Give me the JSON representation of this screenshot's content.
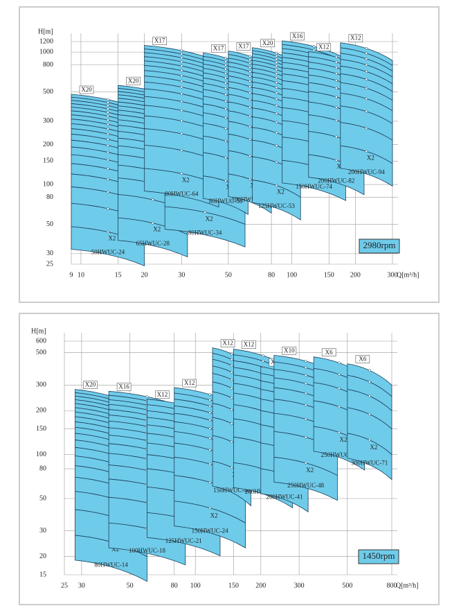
{
  "chart_data": [
    {
      "type": "pump-chart",
      "speed": "2980rpm",
      "ylabel": "H[m]",
      "xlabel": "Q[m³/h]",
      "xlog": true,
      "ylog": true,
      "grid": true,
      "xlim": [
        9,
        300
      ],
      "ylim": [
        25,
        1200
      ],
      "xticks": [
        9,
        10,
        15,
        20,
        30,
        50,
        80,
        100,
        150,
        200,
        300
      ],
      "yticks": [
        25,
        30,
        50,
        80,
        100,
        150,
        200,
        300,
        500,
        800,
        1000,
        1200
      ],
      "pumps": [
        {
          "name": "50HWUC-24",
          "q": [
            9,
            20
          ],
          "h": [
            24,
            18
          ],
          "stages": [
            2,
            20
          ],
          "stage_labels": [
            "X2",
            "X20"
          ]
        },
        {
          "name": "65HWUC-28",
          "q": [
            15,
            32
          ],
          "h": [
            28,
            21
          ],
          "stages": [
            2,
            20
          ],
          "stage_labels": [
            "X2",
            "X20"
          ]
        },
        {
          "name": "80HWUC-34",
          "q": [
            25,
            60
          ],
          "h": [
            34,
            25
          ],
          "stages": [
            2,
            20
          ],
          "stage_labels": [
            "X2",
            "X20"
          ]
        },
        {
          "name": "80HWUC-64",
          "q": [
            20,
            45
          ],
          "h": [
            66,
            50
          ],
          "stages": [
            2,
            17
          ],
          "stage_labels": [
            "X2",
            "X17"
          ]
        },
        {
          "name": "80HWUC-56",
          "q": [
            38,
            62
          ],
          "h": [
            58,
            44
          ],
          "stages": [
            2,
            17
          ],
          "stage_labels": [
            "X2",
            "X17"
          ]
        },
        {
          "name": "100HWUC-59",
          "q": [
            50,
            80
          ],
          "h": [
            60,
            45
          ],
          "stages": [
            2,
            17
          ],
          "stage_labels": [
            "X2",
            "X17"
          ]
        },
        {
          "name": "125HWUC-53",
          "q": [
            65,
            110
          ],
          "h": [
            54,
            40
          ],
          "stages": [
            2,
            20
          ],
          "stage_labels": [
            "X2",
            "X20"
          ]
        },
        {
          "name": "150HWUC-74",
          "q": [
            90,
            180
          ],
          "h": [
            76,
            56
          ],
          "stages": [
            2,
            16
          ],
          "stage_labels": [
            "X2",
            "X16"
          ]
        },
        {
          "name": "200HWUC-82",
          "q": [
            120,
            220
          ],
          "h": [
            84,
            62
          ],
          "stages": [
            2,
            12
          ],
          "stage_labels": [
            "X2",
            "X12"
          ]
        },
        {
          "name": "200HWUC-94",
          "q": [
            170,
            300
          ],
          "h": [
            98,
            72
          ],
          "stages": [
            2,
            12
          ],
          "stage_labels": [
            "X2",
            "X12"
          ]
        }
      ]
    },
    {
      "type": "pump-chart",
      "speed": "1450rpm",
      "ylabel": "H[m]",
      "xlabel": "Q[m³/h]",
      "xlog": true,
      "ylog": true,
      "grid": true,
      "xlim": [
        25,
        800
      ],
      "ylim": [
        15,
        600
      ],
      "xticks": [
        25,
        30,
        50,
        80,
        100,
        150,
        200,
        300,
        500,
        800
      ],
      "yticks": [
        15,
        20,
        30,
        50,
        80,
        100,
        150,
        200,
        300,
        500,
        600
      ],
      "pumps": [
        {
          "name": "80HWUC-14",
          "q": [
            28,
            60
          ],
          "h": [
            14,
            10
          ],
          "stages": [
            2,
            20
          ],
          "stage_labels": [
            "X2",
            "X20"
          ]
        },
        {
          "name": "100HWUC-18",
          "q": [
            40,
            90
          ],
          "h": [
            17,
            13
          ],
          "stages": [
            2,
            16
          ],
          "stage_labels": [
            "X2",
            "X16"
          ]
        },
        {
          "name": "125HWUC-21",
          "q": [
            60,
            130
          ],
          "h": [
            20,
            15
          ],
          "stages": [
            2,
            12
          ],
          "stage_labels": [
            "X2",
            "X12"
          ]
        },
        {
          "name": "150HWUC-24",
          "q": [
            80,
            170
          ],
          "h": [
            24,
            17
          ],
          "stages": [
            2,
            12
          ],
          "stage_labels": [
            "X2",
            "X12"
          ]
        },
        {
          "name": "150HWUC-46",
          "q": [
            120,
            180
          ],
          "h": [
            45,
            33
          ],
          "stages": [
            2,
            12
          ],
          "stage_labels": [
            "X2",
            "X12"
          ]
        },
        {
          "name": "200HWUC-43",
          "q": [
            150,
            280
          ],
          "h": [
            44,
            32
          ],
          "stages": [
            2,
            12
          ],
          "stage_labels": [
            "X2",
            "X12"
          ]
        },
        {
          "name": "200HWUC-41",
          "q": [
            200,
            330
          ],
          "h": [
            40,
            30
          ],
          "stages": [
            2,
            10
          ],
          "stage_labels": [
            "X2",
            "X10"
          ]
        },
        {
          "name": "250HWUC-48",
          "q": [
            230,
            450
          ],
          "h": [
            48,
            36
          ],
          "stages": [
            2,
            10
          ],
          "stage_labels": [
            "X2",
            "X10"
          ]
        },
        {
          "name": "250HWUC-80",
          "q": [
            350,
            600
          ],
          "h": [
            78,
            58
          ],
          "stages": [
            2,
            6
          ],
          "stage_labels": [
            "X2",
            "X6"
          ]
        },
        {
          "name": "300HWUC-71",
          "q": [
            500,
            800
          ],
          "h": [
            70,
            50
          ],
          "stages": [
            2,
            6
          ],
          "stage_labels": [
            "X2",
            "X6"
          ]
        }
      ]
    }
  ]
}
